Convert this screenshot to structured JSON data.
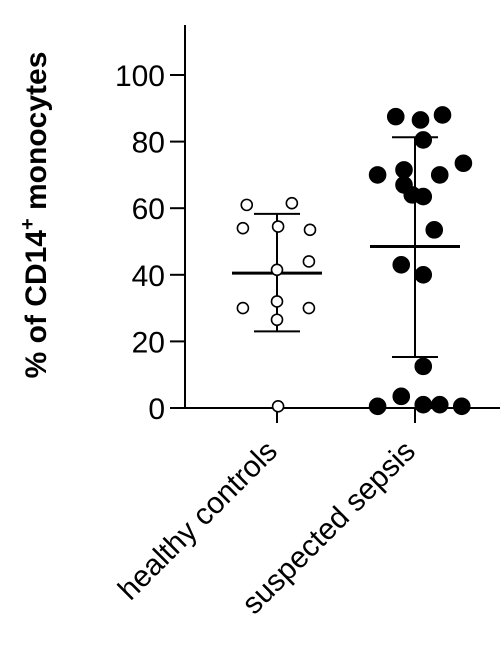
{
  "chart_data": {
    "type": "scatter",
    "ylabel": {
      "prefix": "% of CD14",
      "superscript": "+",
      "suffix": " monocytes"
    },
    "ylim": [
      0,
      115
    ],
    "yticks": [
      0,
      20,
      40,
      60,
      80,
      100
    ],
    "categories": [
      "healthy controls",
      "suspected sepsis"
    ],
    "series": [
      {
        "category": "healthy controls",
        "marker": "open-circle",
        "mean": 40.5,
        "sd_low": 23,
        "sd_high": 58.3,
        "points": [
          {
            "x": -0.55,
            "y": 61
          },
          {
            "x": 0.27,
            "y": 61.5
          },
          {
            "x": -0.62,
            "y": 54
          },
          {
            "x": 0.02,
            "y": 54.5
          },
          {
            "x": 0.6,
            "y": 53.5
          },
          {
            "x": 0.58,
            "y": 44
          },
          {
            "x": 0.0,
            "y": 41.5
          },
          {
            "x": 0.0,
            "y": 32
          },
          {
            "x": -0.62,
            "y": 30
          },
          {
            "x": 0.58,
            "y": 30
          },
          {
            "x": 0.0,
            "y": 26.5
          },
          {
            "x": 0.02,
            "y": 0.5
          }
        ]
      },
      {
        "category": "suspected sepsis",
        "marker": "filled-circle",
        "mean": 48.5,
        "sd_low": 15.3,
        "sd_high": 81.3,
        "points": [
          {
            "x": -0.35,
            "y": 87.5
          },
          {
            "x": 0.1,
            "y": 86.5
          },
          {
            "x": 0.5,
            "y": 88
          },
          {
            "x": 0.15,
            "y": 80.5
          },
          {
            "x": -0.68,
            "y": 70
          },
          {
            "x": -0.2,
            "y": 71.5
          },
          {
            "x": 0.45,
            "y": 70
          },
          {
            "x": 0.88,
            "y": 73.5
          },
          {
            "x": -0.2,
            "y": 67
          },
          {
            "x": 0.15,
            "y": 63.5
          },
          {
            "x": -0.05,
            "y": 64
          },
          {
            "x": 0.35,
            "y": 53.5
          },
          {
            "x": -0.25,
            "y": 43
          },
          {
            "x": 0.15,
            "y": 40
          },
          {
            "x": 0.15,
            "y": 12.5
          },
          {
            "x": -0.68,
            "y": 0.5
          },
          {
            "x": -0.25,
            "y": 3.5
          },
          {
            "x": 0.15,
            "y": 1
          },
          {
            "x": 0.45,
            "y": 1
          },
          {
            "x": 0.85,
            "y": 0.5
          }
        ]
      }
    ]
  }
}
